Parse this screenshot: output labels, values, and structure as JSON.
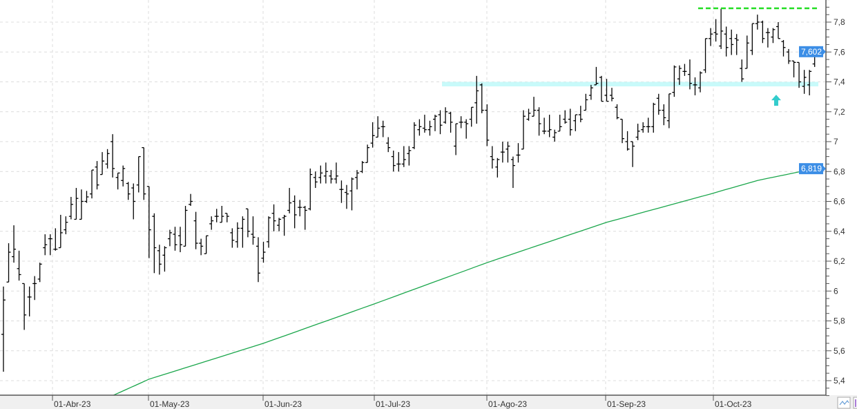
{
  "chart_data": {
    "type": "ohlc",
    "bar_fields": [
      "open",
      "high",
      "low",
      "close"
    ],
    "bars": [
      [
        5.71,
        6.03,
        5.46,
        5.94
      ],
      [
        6.06,
        6.32,
        6.06,
        6.26
      ],
      [
        6.23,
        6.44,
        6.19,
        6.28
      ],
      [
        6.15,
        6.27,
        6.07,
        6.11
      ],
      [
        6.05,
        6.05,
        5.74,
        5.84
      ],
      [
        5.96,
        6.03,
        5.83,
        5.96
      ],
      [
        6.05,
        6.1,
        5.94,
        6.05
      ],
      [
        6.08,
        6.19,
        6.06,
        6.18
      ],
      [
        6.29,
        6.38,
        6.24,
        6.31
      ],
      [
        6.35,
        6.38,
        6.24,
        6.35
      ],
      [
        6.28,
        6.42,
        6.27,
        6.28
      ],
      [
        6.29,
        6.51,
        6.29,
        6.39
      ],
      [
        6.41,
        6.5,
        6.38,
        6.46
      ],
      [
        6.5,
        6.63,
        6.48,
        6.58
      ],
      [
        6.48,
        6.69,
        6.48,
        6.62
      ],
      [
        6.48,
        6.68,
        6.48,
        6.6
      ],
      [
        6.6,
        6.67,
        6.59,
        6.63
      ],
      [
        6.65,
        6.81,
        6.62,
        6.81
      ],
      [
        6.83,
        6.87,
        6.68,
        6.71
      ],
      [
        6.78,
        6.93,
        6.78,
        6.87
      ],
      [
        6.85,
        6.95,
        6.82,
        6.92
      ],
      [
        7.0,
        7.05,
        6.76,
        6.82
      ],
      [
        6.76,
        6.79,
        6.68,
        6.79
      ],
      [
        6.74,
        6.84,
        6.7,
        6.82
      ],
      [
        6.72,
        6.73,
        6.61,
        6.65
      ],
      [
        6.69,
        6.72,
        6.48,
        6.6
      ],
      [
        6.71,
        6.9,
        6.66,
        6.9
      ],
      [
        6.96,
        6.96,
        6.61,
        6.65
      ],
      [
        6.7,
        6.7,
        6.22,
        6.41
      ],
      [
        6.5,
        6.52,
        6.12,
        6.29
      ],
      [
        6.27,
        6.31,
        6.11,
        6.18
      ],
      [
        6.24,
        6.3,
        6.13,
        6.29
      ],
      [
        6.35,
        6.41,
        6.3,
        6.39
      ],
      [
        6.38,
        6.43,
        6.27,
        6.31
      ],
      [
        6.37,
        6.43,
        6.26,
        6.31
      ],
      [
        6.3,
        6.57,
        6.3,
        6.54
      ],
      [
        6.58,
        6.65,
        6.57,
        6.6
      ],
      [
        6.47,
        6.53,
        6.28,
        6.32
      ],
      [
        6.32,
        6.35,
        6.24,
        6.3
      ],
      [
        6.25,
        6.37,
        6.25,
        6.37
      ],
      [
        6.45,
        6.5,
        6.41,
        6.47
      ],
      [
        6.5,
        6.55,
        6.46,
        6.5
      ],
      [
        6.46,
        6.57,
        6.46,
        6.5
      ],
      [
        6.52,
        6.52,
        6.46,
        6.5
      ],
      [
        6.39,
        6.42,
        6.29,
        6.34
      ],
      [
        6.33,
        6.46,
        6.29,
        6.42
      ],
      [
        6.42,
        6.5,
        6.29,
        6.48
      ],
      [
        6.55,
        6.55,
        6.36,
        6.4
      ],
      [
        6.38,
        6.5,
        6.31,
        6.36
      ],
      [
        6.3,
        6.36,
        6.06,
        6.12
      ],
      [
        6.22,
        6.33,
        6.19,
        6.26
      ],
      [
        6.33,
        6.5,
        6.29,
        6.49
      ],
      [
        6.52,
        6.58,
        6.4,
        6.47
      ],
      [
        6.44,
        6.49,
        6.4,
        6.48
      ],
      [
        6.49,
        6.51,
        6.37,
        6.5
      ],
      [
        6.54,
        6.69,
        6.52,
        6.59
      ],
      [
        6.6,
        6.64,
        6.42,
        6.51
      ],
      [
        6.56,
        6.61,
        6.5,
        6.56
      ],
      [
        6.56,
        6.57,
        6.41,
        6.54
      ],
      [
        6.55,
        6.82,
        6.54,
        6.78
      ],
      [
        6.76,
        6.8,
        6.69,
        6.73
      ],
      [
        6.76,
        6.84,
        6.72,
        6.79
      ],
      [
        6.77,
        6.86,
        6.72,
        6.8
      ],
      [
        6.77,
        6.81,
        6.72,
        6.75
      ],
      [
        6.75,
        6.86,
        6.72,
        6.77
      ],
      [
        6.68,
        6.74,
        6.59,
        6.68
      ],
      [
        6.66,
        6.71,
        6.55,
        6.65
      ],
      [
        6.67,
        6.76,
        6.54,
        6.75
      ],
      [
        6.76,
        6.81,
        6.68,
        6.79
      ],
      [
        6.8,
        6.87,
        6.79,
        6.86
      ],
      [
        6.86,
        6.98,
        6.86,
        6.96
      ],
      [
        6.99,
        7.13,
        6.96,
        7.04
      ],
      [
        7.03,
        7.17,
        7.03,
        7.09
      ],
      [
        7.1,
        7.14,
        7.03,
        7.1
      ],
      [
        6.99,
        7.03,
        6.93,
        6.96
      ],
      [
        6.9,
        6.94,
        6.8,
        6.84
      ],
      [
        6.85,
        6.93,
        6.8,
        6.85
      ],
      [
        6.85,
        6.97,
        6.83,
        6.88
      ],
      [
        6.92,
        6.97,
        6.84,
        6.94
      ],
      [
        6.96,
        7.13,
        6.95,
        7.11
      ],
      [
        7.08,
        7.15,
        7.04,
        7.1
      ],
      [
        7.09,
        7.18,
        7.06,
        7.08
      ],
      [
        7.08,
        7.14,
        7.04,
        7.1
      ],
      [
        7.15,
        7.18,
        7.07,
        7.17
      ],
      [
        7.18,
        7.21,
        7.05,
        7.11
      ],
      [
        7.13,
        7.23,
        7.12,
        7.2
      ],
      [
        7.19,
        7.2,
        7.06,
        7.13
      ],
      [
        6.97,
        7.12,
        6.91,
        7.12
      ],
      [
        7.13,
        7.17,
        7.09,
        7.13
      ],
      [
        7.13,
        7.15,
        7.02,
        7.12
      ],
      [
        7.15,
        7.23,
        7.1,
        7.23
      ],
      [
        7.26,
        7.44,
        7.12,
        7.34
      ],
      [
        7.38,
        7.39,
        7.19,
        7.21
      ],
      [
        7.21,
        7.25,
        6.97,
        7.01
      ],
      [
        6.9,
        6.97,
        6.82,
        6.88
      ],
      [
        6.83,
        6.89,
        6.76,
        6.88
      ],
      [
        6.93,
        7.0,
        6.86,
        6.93
      ],
      [
        6.95,
        7.0,
        6.86,
        6.97
      ],
      [
        6.88,
        6.9,
        6.69,
        6.84
      ],
      [
        6.91,
        6.99,
        6.86,
        6.91
      ],
      [
        6.95,
        7.21,
        6.95,
        7.17
      ],
      [
        7.15,
        7.22,
        7.14,
        7.19
      ],
      [
        7.17,
        7.3,
        7.17,
        7.21
      ],
      [
        7.21,
        7.23,
        7.04,
        7.12
      ],
      [
        7.07,
        7.16,
        7.05,
        7.07
      ],
      [
        7.07,
        7.18,
        7.03,
        7.08
      ],
      [
        7.03,
        7.08,
        7.0,
        7.06
      ],
      [
        7.07,
        7.18,
        7.07,
        7.1
      ],
      [
        7.15,
        7.21,
        7.12,
        7.13
      ],
      [
        7.15,
        7.22,
        7.04,
        7.08
      ],
      [
        7.14,
        7.18,
        7.07,
        7.18
      ],
      [
        7.18,
        7.24,
        7.13,
        7.15
      ],
      [
        7.21,
        7.32,
        7.21,
        7.28
      ],
      [
        7.31,
        7.38,
        7.28,
        7.36
      ],
      [
        7.38,
        7.5,
        7.38,
        7.39
      ],
      [
        7.43,
        7.44,
        7.27,
        7.27
      ],
      [
        7.31,
        7.42,
        7.27,
        7.27
      ],
      [
        7.31,
        7.36,
        7.27,
        7.29
      ],
      [
        7.23,
        7.25,
        7.15,
        7.16
      ],
      [
        7.15,
        7.15,
        6.99,
        7.02
      ],
      [
        7.0,
        7.07,
        6.94,
        6.95
      ],
      [
        7.0,
        7.0,
        6.83,
        6.97
      ],
      [
        7.03,
        7.12,
        7.01,
        7.07
      ],
      [
        7.08,
        7.13,
        7.06,
        7.1
      ],
      [
        7.1,
        7.16,
        7.06,
        7.1
      ],
      [
        7.1,
        7.26,
        7.06,
        7.25
      ],
      [
        7.29,
        7.32,
        7.18,
        7.21
      ],
      [
        7.21,
        7.25,
        7.11,
        7.16
      ],
      [
        7.14,
        7.32,
        7.09,
        7.32
      ],
      [
        7.33,
        7.51,
        7.3,
        7.5
      ],
      [
        7.42,
        7.51,
        7.38,
        7.49
      ],
      [
        7.47,
        7.52,
        7.44,
        7.47
      ],
      [
        7.45,
        7.55,
        7.35,
        7.39
      ],
      [
        7.38,
        7.43,
        7.31,
        7.38
      ],
      [
        7.36,
        7.47,
        7.33,
        7.46
      ],
      [
        7.48,
        7.69,
        7.46,
        7.69
      ],
      [
        7.69,
        7.76,
        7.64,
        7.72
      ],
      [
        7.73,
        7.82,
        7.67,
        7.72
      ],
      [
        7.64,
        7.89,
        7.62,
        7.74
      ],
      [
        7.72,
        7.77,
        7.57,
        7.63
      ],
      [
        7.69,
        7.75,
        7.58,
        7.65
      ],
      [
        7.69,
        7.72,
        7.58,
        7.68
      ],
      [
        7.49,
        7.55,
        7.4,
        7.42
      ],
      [
        7.49,
        7.71,
        7.49,
        7.66
      ],
      [
        7.61,
        7.79,
        7.58,
        7.79
      ],
      [
        7.79,
        7.85,
        7.75,
        7.8
      ],
      [
        7.8,
        7.81,
        7.66,
        7.69
      ],
      [
        7.73,
        7.76,
        7.63,
        7.73
      ],
      [
        7.7,
        7.76,
        7.66,
        7.75
      ],
      [
        7.77,
        7.8,
        7.69,
        7.69
      ],
      [
        7.67,
        7.68,
        7.57,
        7.63
      ],
      [
        7.6,
        7.62,
        7.52,
        7.54
      ],
      [
        7.54,
        7.54,
        7.43,
        7.53
      ],
      [
        7.53,
        7.53,
        7.36,
        7.4
      ],
      [
        7.37,
        7.48,
        7.32,
        7.43
      ],
      [
        7.38,
        7.48,
        7.31,
        7.47
      ],
      [
        7.52,
        7.63,
        7.5,
        7.61
      ]
    ],
    "moving_average": {
      "color": "#1aa64b",
      "points_bar_index_value": [
        [
          21,
          5.3
        ],
        [
          28,
          5.41
        ],
        [
          50,
          5.65
        ],
        [
          71,
          5.91
        ],
        [
          93,
          6.19
        ],
        [
          116,
          6.46
        ],
        [
          136,
          6.65
        ],
        [
          145,
          6.74
        ],
        [
          156,
          6.819
        ]
      ]
    },
    "x_tick_labels": [
      "01-Abr-23",
      "01-May-23",
      "01-Jun-23",
      "01-Jul-23",
      "01-Ago-23",
      "01-Sep-23",
      "01-Oct-23"
    ],
    "y_tick_values": [
      5.4,
      5.6,
      5.8,
      6,
      6.2,
      6.4,
      6.6,
      6.8,
      7,
      7.2,
      7.4,
      7.6,
      7.8
    ],
    "y_tick_labels": [
      "5,4",
      "5,6",
      "5,8",
      "6",
      "6,2",
      "6,4",
      "6,6",
      "6,8",
      "7",
      "7,2",
      "7,4",
      "7,6",
      "7,8"
    ],
    "ylim": [
      5.3,
      7.95
    ],
    "grid": true,
    "last_price": {
      "value": 7.602,
      "label": "7,602",
      "color": "#3c8ee6"
    },
    "ma_last": {
      "value": 6.819,
      "label": "6,819",
      "color": "#3c8ee6"
    },
    "resistance_line": {
      "value": 7.88,
      "from_bar": 134,
      "color": "#22dd22"
    },
    "support_zone": {
      "low": 7.37,
      "high": 7.4,
      "from_bar": 85,
      "color": "#c8fafa"
    },
    "arrow_marker": {
      "direction": "up",
      "value": 7.24,
      "bar": 149,
      "color": "#33cccc"
    },
    "bar_color": "#000000"
  },
  "toolbar": {
    "icons": [
      "line-chart-icon",
      "panel-icon"
    ]
  }
}
